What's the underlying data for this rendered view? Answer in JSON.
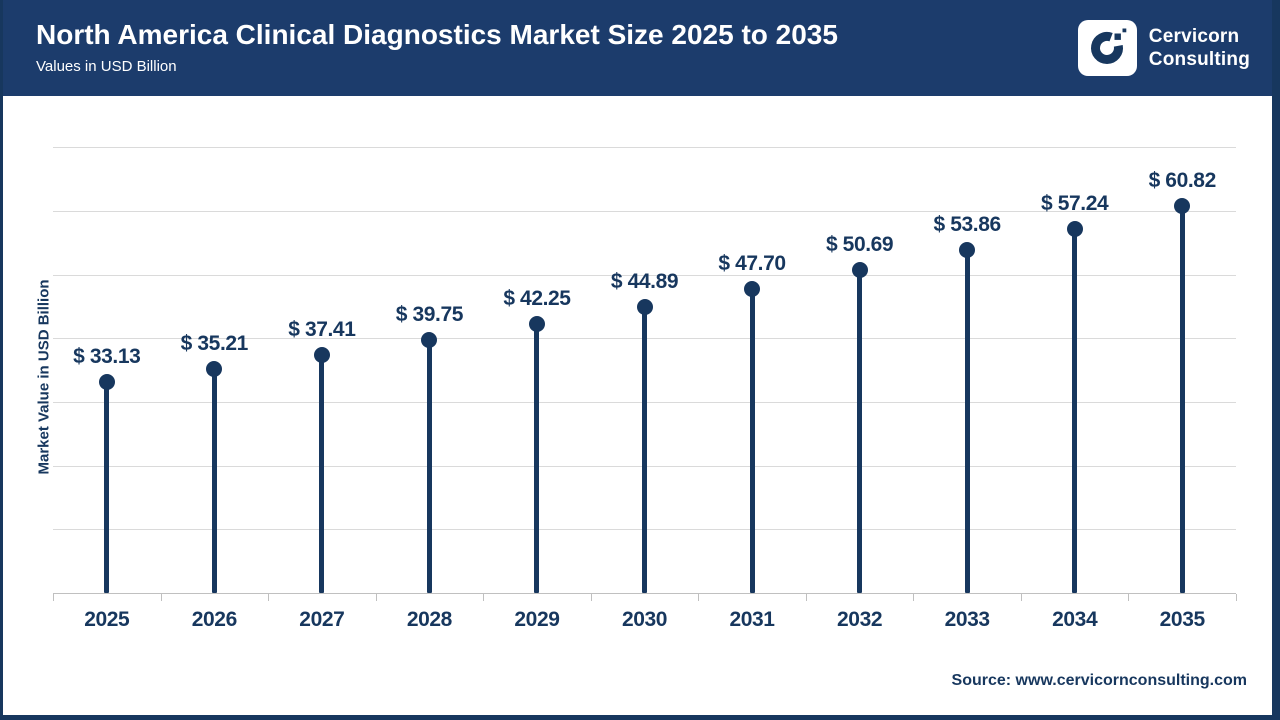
{
  "header": {
    "title": "North America Clinical Diagnostics Market Size 2025 to 2035",
    "subtitle": "Values in USD Billion",
    "brand": {
      "line1": "Cervicorn",
      "line2": "Consulting",
      "logo_icon": "cervicorn-c-logo"
    }
  },
  "chart_data": {
    "type": "bar",
    "variant": "lollipop",
    "title": "North America Clinical Diagnostics Market Size 2025 to 2035",
    "subtitle": "Values in USD Billion",
    "categories": [
      "2025",
      "2026",
      "2027",
      "2028",
      "2029",
      "2030",
      "2031",
      "2032",
      "2033",
      "2034",
      "2035"
    ],
    "values": [
      33.13,
      35.21,
      37.41,
      39.75,
      42.25,
      44.89,
      47.7,
      50.69,
      53.86,
      57.24,
      60.82
    ],
    "label_prefix": "$ ",
    "xlabel": "",
    "ylabel": "Market Value in USD Billion",
    "ylim": [
      0,
      75
    ],
    "gridline_values": [
      10,
      20,
      30,
      40,
      50,
      60,
      70
    ],
    "grid": "horizontal-only",
    "legend": "none",
    "colors": {
      "navy": "#17375E",
      "header_bg": "#1C3C6C",
      "gridline": "#DADADA",
      "axis": "#C0C0C0",
      "background": "#FFFFFF"
    }
  },
  "footer": {
    "source": "Source: www.cervicornconsulting.com"
  }
}
